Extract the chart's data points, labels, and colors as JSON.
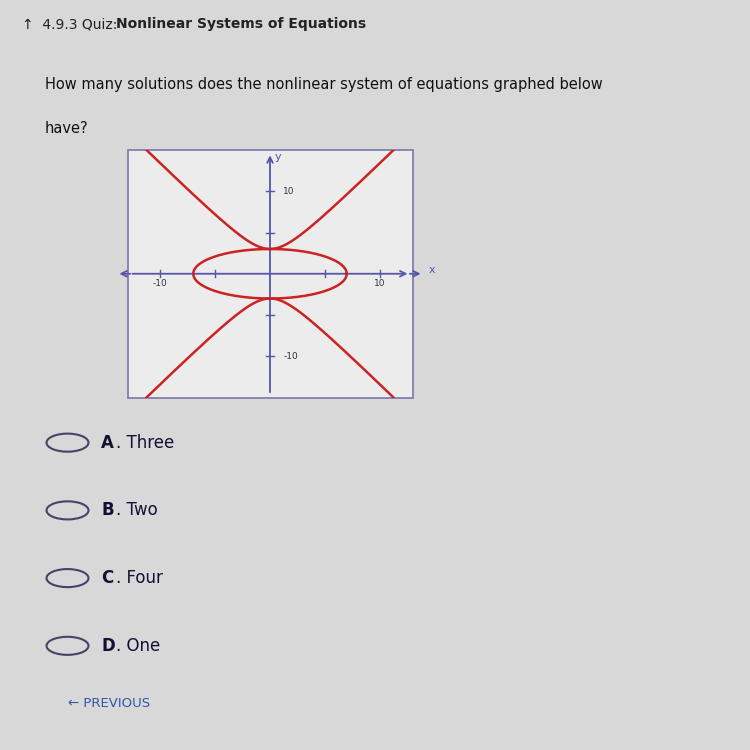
{
  "title_prefix": "↑  4.9.3 Quiz:",
  "title_bold": "Nonlinear Systems of Equations",
  "question_line1": "How many solutions does the nonlinear system of equations graphed below",
  "question_line2": "have?",
  "xlim": [
    -13,
    13
  ],
  "ylim": [
    -15,
    15
  ],
  "axis_color": "#5555aa",
  "curve_color": "#cc2222",
  "background_color": "#d8d8d8",
  "plot_bg": "#ececec",
  "box_color": "#7777aa",
  "tick_label_color": "#333333",
  "choices": [
    "A. Three",
    "B. Two",
    "C. Four",
    "D. One"
  ],
  "ellipse_a": 7.0,
  "ellipse_b": 3.0,
  "hyperbola_a": 3.0,
  "hyperbola_b": 7.0,
  "lw": 1.8,
  "header_bg": "#c8c8c8",
  "bottom_bar_color": "#4a5a7a",
  "previous_color": "#3355aa"
}
